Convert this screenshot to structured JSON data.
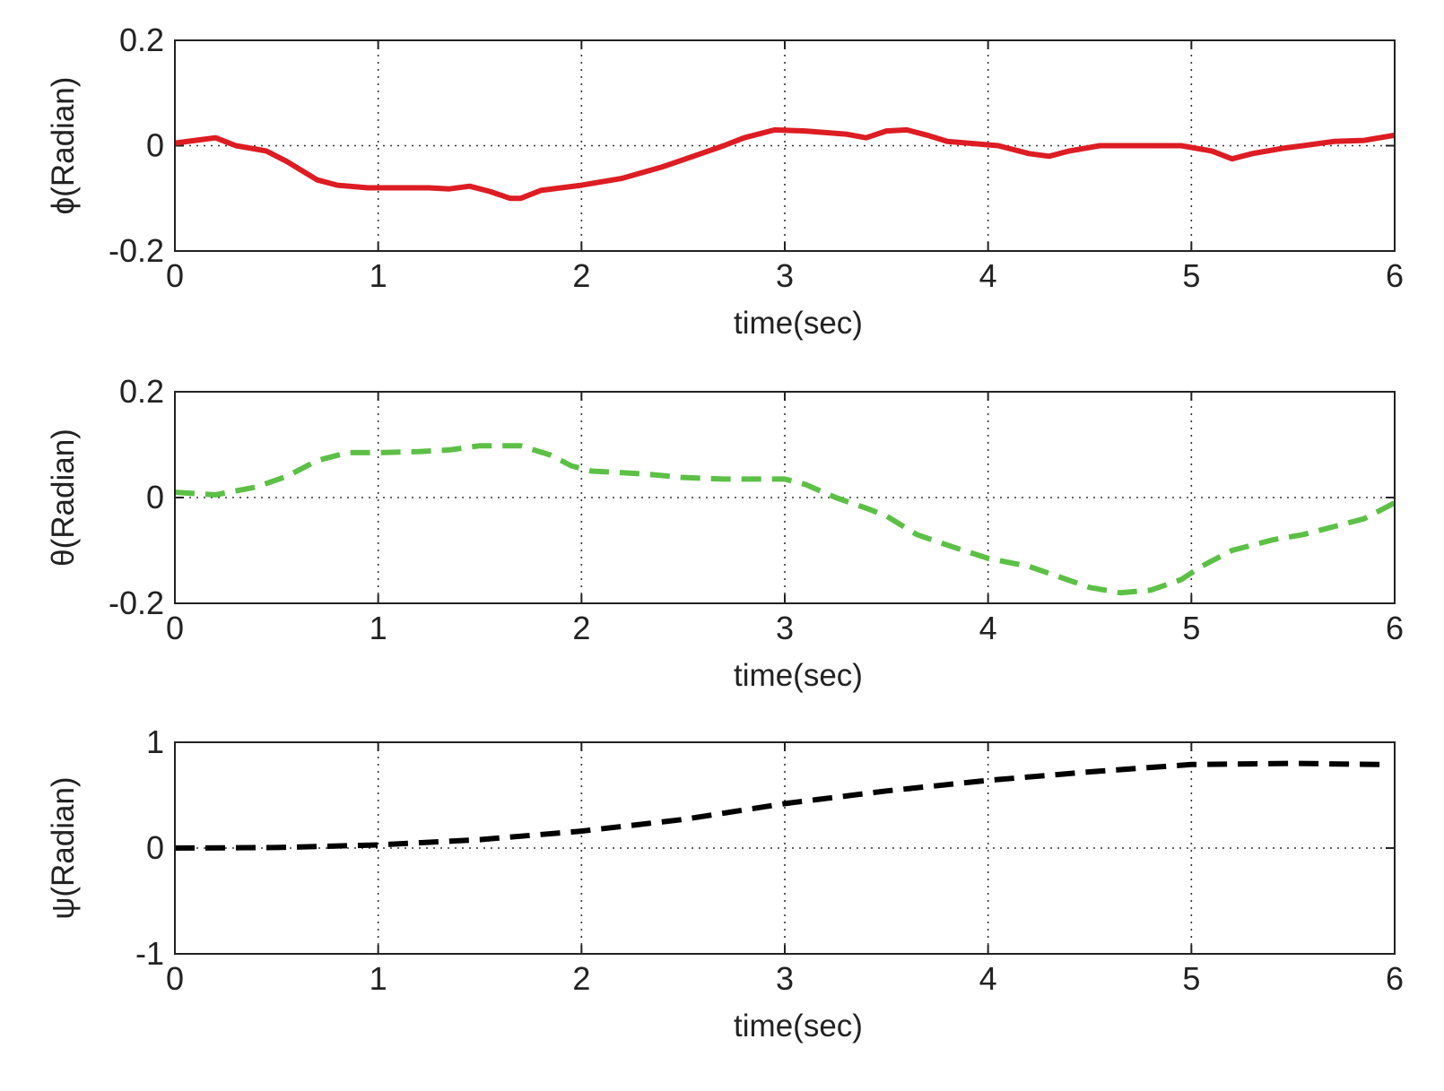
{
  "chart_data": [
    {
      "type": "line",
      "xlabel": "time(sec)",
      "ylabel": "ϕ(Radian)",
      "xlim": [
        0,
        6
      ],
      "ylim": [
        -0.2,
        0.2
      ],
      "xticks": [
        "0",
        "1",
        "2",
        "3",
        "4",
        "5",
        "6"
      ],
      "yticks": [
        "-0.2",
        "0",
        "0.2"
      ],
      "ytick_values": [
        -0.2,
        0,
        0.2
      ],
      "grid": true,
      "series": [
        {
          "color": "#dd1c23",
          "line_style": "solid",
          "x": [
            0,
            0.1,
            0.2,
            0.3,
            0.45,
            0.55,
            0.7,
            0.8,
            0.95,
            1.1,
            1.25,
            1.35,
            1.45,
            1.55,
            1.65,
            1.7,
            1.8,
            2.0,
            2.2,
            2.4,
            2.55,
            2.7,
            2.8,
            2.95,
            3.1,
            3.3,
            3.4,
            3.5,
            3.6,
            3.7,
            3.8,
            3.9,
            4.05,
            4.2,
            4.3,
            4.4,
            4.55,
            4.7,
            4.8,
            4.95,
            5.1,
            5.2,
            5.3,
            5.45,
            5.55,
            5.7,
            5.85,
            6.0
          ],
          "y": [
            0.005,
            0.01,
            0.015,
            0.0,
            -0.01,
            -0.03,
            -0.065,
            -0.075,
            -0.08,
            -0.08,
            -0.08,
            -0.082,
            -0.077,
            -0.087,
            -0.1,
            -0.1,
            -0.085,
            -0.075,
            -0.062,
            -0.04,
            -0.02,
            0.0,
            0.015,
            0.03,
            0.028,
            0.022,
            0.015,
            0.028,
            0.03,
            0.02,
            0.008,
            0.005,
            0.0,
            -0.015,
            -0.02,
            -0.01,
            0.0,
            0.0,
            0.0,
            0.0,
            -0.01,
            -0.025,
            -0.015,
            -0.005,
            0.0,
            0.008,
            0.01,
            0.02
          ]
        }
      ]
    },
    {
      "type": "line",
      "xlabel": "time(sec)",
      "ylabel": "θ(Radian)",
      "xlim": [
        0,
        6
      ],
      "ylim": [
        -0.2,
        0.2
      ],
      "xticks": [
        "0",
        "1",
        "2",
        "3",
        "4",
        "5",
        "6"
      ],
      "yticks": [
        "-0.2",
        "0",
        "0.2"
      ],
      "ytick_values": [
        -0.2,
        0,
        0.2
      ],
      "grid": true,
      "series": [
        {
          "color": "#5cc046",
          "line_style": "dashed",
          "x": [
            0,
            0.2,
            0.4,
            0.55,
            0.7,
            0.85,
            1.0,
            1.2,
            1.35,
            1.5,
            1.7,
            1.85,
            1.95,
            2.05,
            2.3,
            2.5,
            2.7,
            2.9,
            3.0,
            3.1,
            3.25,
            3.4,
            3.5,
            3.65,
            3.8,
            4.0,
            4.2,
            4.35,
            4.5,
            4.65,
            4.8,
            4.95,
            5.05,
            5.2,
            5.4,
            5.55,
            5.7,
            5.85,
            6.0
          ],
          "y": [
            0.01,
            0.005,
            0.02,
            0.04,
            0.07,
            0.085,
            0.085,
            0.087,
            0.09,
            0.098,
            0.098,
            0.08,
            0.06,
            0.05,
            0.045,
            0.038,
            0.035,
            0.035,
            0.035,
            0.025,
            0.0,
            -0.02,
            -0.035,
            -0.07,
            -0.09,
            -0.115,
            -0.13,
            -0.15,
            -0.17,
            -0.18,
            -0.175,
            -0.155,
            -0.13,
            -0.1,
            -0.08,
            -0.07,
            -0.055,
            -0.04,
            -0.01
          ]
        }
      ]
    },
    {
      "type": "line",
      "xlabel": "time(sec)",
      "ylabel": "ψ(Radian)",
      "xlim": [
        0,
        6
      ],
      "ylim": [
        -1,
        1
      ],
      "xticks": [
        "0",
        "1",
        "2",
        "3",
        "4",
        "5",
        "6"
      ],
      "yticks": [
        "-1",
        "0",
        "1"
      ],
      "ytick_values": [
        -1,
        0,
        1
      ],
      "grid": true,
      "series": [
        {
          "color": "#000000",
          "line_style": "dashed",
          "x": [
            0,
            0.5,
            1.0,
            1.5,
            2.0,
            2.5,
            3.0,
            3.5,
            4.0,
            4.5,
            5.0,
            5.5,
            5.95
          ],
          "y": [
            0.0,
            0.005,
            0.03,
            0.08,
            0.16,
            0.27,
            0.42,
            0.54,
            0.64,
            0.72,
            0.79,
            0.8,
            0.79
          ]
        }
      ]
    }
  ]
}
